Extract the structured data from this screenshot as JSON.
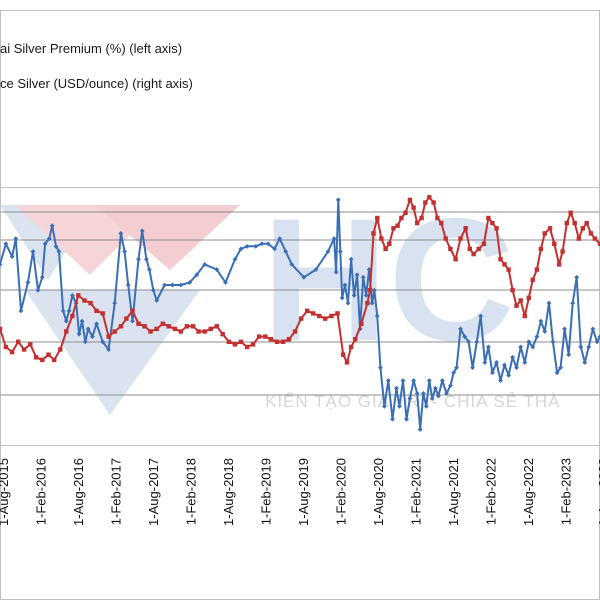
{
  "chart_data": {
    "type": "line",
    "watermark": {
      "logo_text": "HC",
      "tagline": "KIẾN TẠO GIÁ TRỊ - CHIA SẺ THÀ"
    },
    "legend": [
      {
        "label": "ai Silver Premium (%) (left axis)",
        "color": "#3a6fb5"
      },
      {
        "label": "ce Silver (USD/ounce) (right axis)",
        "color": "#c42f2f"
      }
    ],
    "x_ticks": [
      "1-Aug-2015",
      "1-Feb-2016",
      "1-Aug-2016",
      "1-Feb-2017",
      "1-Aug-2017",
      "1-Feb-2018",
      "1-Aug-2018",
      "1-Feb-2019",
      "1-Aug-2019",
      "1-Feb-2020",
      "1-Aug-2020",
      "1-Feb-2021",
      "1-Aug-2021",
      "1-Feb-2022",
      "1-Aug-2022",
      "1-Feb-2023",
      "1-Aug-2023"
    ],
    "x_range": [
      "2015-06-01",
      "2023-09-20"
    ],
    "left_ylim": [
      0,
      100
    ],
    "right_ylim": [
      0,
      100
    ],
    "gridlines": true,
    "series": [
      {
        "name": "ai Silver Premium (%) (left axis)",
        "axis": "left",
        "color": "#3a6fb5",
        "marker": "diamond",
        "points": [
          [
            "2015-06-01",
            70
          ],
          [
            "2015-07-01",
            78
          ],
          [
            "2015-08-01",
            73
          ],
          [
            "2015-08-20",
            80
          ],
          [
            "2015-09-15",
            52
          ],
          [
            "2015-10-20",
            63
          ],
          [
            "2015-11-15",
            75
          ],
          [
            "2015-12-10",
            60
          ],
          [
            "2016-01-01",
            65
          ],
          [
            "2016-01-15",
            78
          ],
          [
            "2016-02-05",
            80
          ],
          [
            "2016-02-20",
            85
          ],
          [
            "2016-03-10",
            77
          ],
          [
            "2016-03-25",
            75
          ],
          [
            "2016-04-15",
            52
          ],
          [
            "2016-05-01",
            48
          ],
          [
            "2016-05-15",
            52
          ],
          [
            "2016-06-01",
            58
          ],
          [
            "2016-06-20",
            55
          ],
          [
            "2016-07-05",
            43
          ],
          [
            "2016-07-20",
            48
          ],
          [
            "2016-08-05",
            40
          ],
          [
            "2016-08-20",
            45
          ],
          [
            "2016-09-10",
            42
          ],
          [
            "2016-10-01",
            47
          ],
          [
            "2016-11-01",
            40
          ],
          [
            "2016-12-01",
            37
          ],
          [
            "2017-01-01",
            55
          ],
          [
            "2017-02-01",
            82
          ],
          [
            "2017-02-20",
            75
          ],
          [
            "2017-03-10",
            62
          ],
          [
            "2017-04-01",
            48
          ],
          [
            "2017-05-01",
            72
          ],
          [
            "2017-05-20",
            83
          ],
          [
            "2017-06-10",
            72
          ],
          [
            "2017-06-25",
            68
          ],
          [
            "2017-07-15",
            60
          ],
          [
            "2017-08-01",
            56
          ],
          [
            "2017-09-10",
            62
          ],
          [
            "2017-10-20",
            62
          ],
          [
            "2017-12-01",
            62
          ],
          [
            "2018-01-15",
            63
          ],
          [
            "2018-02-20",
            66
          ],
          [
            "2018-04-01",
            70
          ],
          [
            "2018-06-01",
            68
          ],
          [
            "2018-07-15",
            63
          ],
          [
            "2018-09-01",
            72
          ],
          [
            "2018-10-01",
            76
          ],
          [
            "2018-11-01",
            77
          ],
          [
            "2018-12-15",
            77
          ],
          [
            "2019-01-15",
            78
          ],
          [
            "2019-02-15",
            78
          ],
          [
            "2019-03-20",
            76
          ],
          [
            "2019-04-15",
            80
          ],
          [
            "2019-05-15",
            75
          ],
          [
            "2019-06-15",
            70
          ],
          [
            "2019-08-15",
            65
          ],
          [
            "2019-10-15",
            68
          ],
          [
            "2019-12-15",
            75
          ],
          [
            "2020-01-15",
            80
          ],
          [
            "2020-01-25",
            67
          ],
          [
            "2020-02-05",
            95
          ],
          [
            "2020-02-15",
            75
          ],
          [
            "2020-02-25",
            57
          ],
          [
            "2020-03-10",
            62
          ],
          [
            "2020-03-25",
            55
          ],
          [
            "2020-04-10",
            72
          ],
          [
            "2020-04-25",
            58
          ],
          [
            "2020-05-10",
            66
          ],
          [
            "2020-05-25",
            45
          ],
          [
            "2020-06-10",
            65
          ],
          [
            "2020-06-25",
            58
          ],
          [
            "2020-07-10",
            68
          ],
          [
            "2020-07-25",
            55
          ],
          [
            "2020-08-05",
            60
          ],
          [
            "2020-08-20",
            50
          ],
          [
            "2020-09-05",
            30
          ],
          [
            "2020-09-25",
            15
          ],
          [
            "2020-10-15",
            25
          ],
          [
            "2020-11-05",
            10
          ],
          [
            "2020-11-25",
            22
          ],
          [
            "2020-12-10",
            15
          ],
          [
            "2020-12-28",
            25
          ],
          [
            "2021-01-15",
            10
          ],
          [
            "2021-02-01",
            18
          ],
          [
            "2021-02-20",
            25
          ],
          [
            "2021-03-10",
            20
          ],
          [
            "2021-03-25",
            6
          ],
          [
            "2021-04-10",
            20
          ],
          [
            "2021-04-25",
            15
          ],
          [
            "2021-05-10",
            25
          ],
          [
            "2021-05-25",
            18
          ],
          [
            "2021-06-10",
            22
          ],
          [
            "2021-06-25",
            19
          ],
          [
            "2021-07-15",
            25
          ],
          [
            "2021-08-05",
            20
          ],
          [
            "2021-08-25",
            23
          ],
          [
            "2021-09-10",
            28
          ],
          [
            "2021-09-25",
            30
          ],
          [
            "2021-10-15",
            45
          ],
          [
            "2021-11-05",
            42
          ],
          [
            "2021-11-25",
            40
          ],
          [
            "2021-12-15",
            30
          ],
          [
            "2022-01-05",
            40
          ],
          [
            "2022-01-25",
            50
          ],
          [
            "2022-02-15",
            32
          ],
          [
            "2022-03-05",
            38
          ],
          [
            "2022-03-25",
            28
          ],
          [
            "2022-04-15",
            32
          ],
          [
            "2022-05-05",
            25
          ],
          [
            "2022-05-25",
            31
          ],
          [
            "2022-06-15",
            27
          ],
          [
            "2022-07-05",
            34
          ],
          [
            "2022-07-25",
            30
          ],
          [
            "2022-08-15",
            38
          ],
          [
            "2022-09-05",
            32
          ],
          [
            "2022-09-25",
            40
          ],
          [
            "2022-10-15",
            38
          ],
          [
            "2022-11-05",
            42
          ],
          [
            "2022-11-25",
            48
          ],
          [
            "2022-12-15",
            44
          ],
          [
            "2023-01-05",
            55
          ],
          [
            "2023-01-25",
            40
          ],
          [
            "2023-02-15",
            28
          ],
          [
            "2023-03-05",
            30
          ],
          [
            "2023-03-25",
            45
          ],
          [
            "2023-04-15",
            35
          ],
          [
            "2023-05-05",
            55
          ],
          [
            "2023-05-25",
            65
          ],
          [
            "2023-06-15",
            38
          ],
          [
            "2023-07-05",
            32
          ],
          [
            "2023-07-25",
            38
          ],
          [
            "2023-08-15",
            45
          ],
          [
            "2023-09-05",
            40
          ],
          [
            "2023-09-20",
            42
          ]
        ]
      },
      {
        "name": "ce Silver (USD/ounce) (right axis)",
        "axis": "right",
        "color": "#c42f2f",
        "marker": "square",
        "points": [
          [
            "2015-06-01",
            45
          ],
          [
            "2015-07-01",
            38
          ],
          [
            "2015-08-01",
            36
          ],
          [
            "2015-09-01",
            40
          ],
          [
            "2015-10-01",
            37
          ],
          [
            "2015-11-01",
            39
          ],
          [
            "2015-12-01",
            34
          ],
          [
            "2016-01-01",
            33
          ],
          [
            "2016-02-01",
            35
          ],
          [
            "2016-03-01",
            33
          ],
          [
            "2016-04-01",
            37
          ],
          [
            "2016-05-01",
            44
          ],
          [
            "2016-06-01",
            50
          ],
          [
            "2016-07-01",
            58
          ],
          [
            "2016-08-01",
            56
          ],
          [
            "2016-09-01",
            55
          ],
          [
            "2016-10-01",
            52
          ],
          [
            "2016-11-01",
            51
          ],
          [
            "2016-12-01",
            42
          ],
          [
            "2017-01-01",
            44
          ],
          [
            "2017-02-01",
            46
          ],
          [
            "2017-03-01",
            49
          ],
          [
            "2017-04-01",
            52
          ],
          [
            "2017-05-01",
            47
          ],
          [
            "2017-06-01",
            46
          ],
          [
            "2017-07-01",
            44
          ],
          [
            "2017-08-01",
            45
          ],
          [
            "2017-09-01",
            47
          ],
          [
            "2017-10-01",
            46
          ],
          [
            "2017-11-01",
            45
          ],
          [
            "2017-12-01",
            44
          ],
          [
            "2018-01-01",
            46
          ],
          [
            "2018-02-01",
            46
          ],
          [
            "2018-03-01",
            44
          ],
          [
            "2018-04-01",
            44
          ],
          [
            "2018-05-01",
            45
          ],
          [
            "2018-06-01",
            46
          ],
          [
            "2018-07-01",
            43
          ],
          [
            "2018-08-01",
            40
          ],
          [
            "2018-09-01",
            39
          ],
          [
            "2018-10-01",
            40
          ],
          [
            "2018-11-01",
            38
          ],
          [
            "2018-12-01",
            39
          ],
          [
            "2019-01-01",
            42
          ],
          [
            "2019-02-01",
            42
          ],
          [
            "2019-03-01",
            41
          ],
          [
            "2019-04-01",
            40
          ],
          [
            "2019-05-01",
            40
          ],
          [
            "2019-06-01",
            41
          ],
          [
            "2019-07-01",
            44
          ],
          [
            "2019-08-01",
            49
          ],
          [
            "2019-09-01",
            52
          ],
          [
            "2019-10-01",
            51
          ],
          [
            "2019-11-01",
            50
          ],
          [
            "2019-12-01",
            49
          ],
          [
            "2020-01-01",
            50
          ],
          [
            "2020-02-01",
            51
          ],
          [
            "2020-03-01",
            35
          ],
          [
            "2020-03-20",
            32
          ],
          [
            "2020-04-10",
            38
          ],
          [
            "2020-05-01",
            41
          ],
          [
            "2020-06-01",
            47
          ],
          [
            "2020-07-01",
            55
          ],
          [
            "2020-07-15",
            60
          ],
          [
            "2020-08-01",
            82
          ],
          [
            "2020-08-20",
            88
          ],
          [
            "2020-09-10",
            80
          ],
          [
            "2020-10-01",
            76
          ],
          [
            "2020-10-20",
            78
          ],
          [
            "2020-11-10",
            84
          ],
          [
            "2020-12-01",
            85
          ],
          [
            "2020-12-20",
            88
          ],
          [
            "2021-01-10",
            90
          ],
          [
            "2021-02-01",
            95
          ],
          [
            "2021-02-20",
            92
          ],
          [
            "2021-03-10",
            86
          ],
          [
            "2021-04-01",
            88
          ],
          [
            "2021-04-20",
            94
          ],
          [
            "2021-05-10",
            96
          ],
          [
            "2021-06-01",
            94
          ],
          [
            "2021-06-20",
            88
          ],
          [
            "2021-07-10",
            86
          ],
          [
            "2021-08-01",
            80
          ],
          [
            "2021-08-25",
            76
          ],
          [
            "2021-09-20",
            72
          ],
          [
            "2021-10-15",
            80
          ],
          [
            "2021-11-10",
            84
          ],
          [
            "2021-12-01",
            76
          ],
          [
            "2021-12-20",
            74
          ],
          [
            "2022-01-15",
            76
          ],
          [
            "2022-02-10",
            78
          ],
          [
            "2022-03-05",
            88
          ],
          [
            "2022-03-25",
            86
          ],
          [
            "2022-04-15",
            84
          ],
          [
            "2022-05-05",
            72
          ],
          [
            "2022-05-25",
            70
          ],
          [
            "2022-06-15",
            68
          ],
          [
            "2022-07-05",
            60
          ],
          [
            "2022-07-25",
            54
          ],
          [
            "2022-08-15",
            56
          ],
          [
            "2022-09-05",
            50
          ],
          [
            "2022-09-25",
            57
          ],
          [
            "2022-10-15",
            64
          ],
          [
            "2022-11-05",
            68
          ],
          [
            "2022-11-25",
            76
          ],
          [
            "2022-12-15",
            82
          ],
          [
            "2023-01-10",
            84
          ],
          [
            "2023-02-01",
            78
          ],
          [
            "2023-02-25",
            70
          ],
          [
            "2023-03-15",
            75
          ],
          [
            "2023-04-05",
            86
          ],
          [
            "2023-04-25",
            90
          ],
          [
            "2023-05-15",
            86
          ],
          [
            "2023-06-05",
            80
          ],
          [
            "2023-06-25",
            84
          ],
          [
            "2023-07-15",
            86
          ],
          [
            "2023-08-05",
            82
          ],
          [
            "2023-08-25",
            80
          ],
          [
            "2023-09-20",
            78
          ]
        ]
      }
    ]
  }
}
